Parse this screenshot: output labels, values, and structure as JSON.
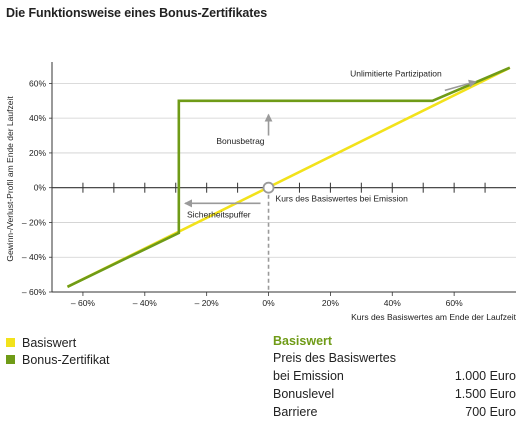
{
  "title": "Die Funktionsweise eines Bonus-Zertifikates",
  "chart_data": {
    "type": "line",
    "xlabel": "Kurs des Basiswertes am Ende der Laufzeit",
    "ylabel": "Gewinn-/Verlust-Profil am Ende der Laufzeit",
    "xlim": [
      -70,
      80
    ],
    "ylim": [
      -60,
      70
    ],
    "xticks": [
      -60,
      -40,
      -20,
      0,
      20,
      40,
      60
    ],
    "xtick_labels": [
      "– 60%",
      "– 40%",
      "– 20%",
      "0%",
      "20%",
      "40%",
      "60%"
    ],
    "yticks": [
      60,
      40,
      20,
      0,
      -20,
      -40,
      -60
    ],
    "ytick_labels": [
      "60%",
      "40%",
      "20%",
      "0%",
      "– 20%",
      "– 40%",
      "– 60%"
    ],
    "grid": "horizontal",
    "series": [
      {
        "name": "Basiswert",
        "color": "#f2e21b",
        "points": [
          [
            -65,
            -57
          ],
          [
            78,
            69
          ]
        ]
      },
      {
        "name": "Bonus-Zertifikat",
        "color": "#6f9b17",
        "points": [
          [
            -65,
            -57
          ],
          [
            -29,
            -26
          ],
          [
            -29,
            50
          ],
          [
            53,
            50
          ],
          [
            78,
            69
          ]
        ]
      }
    ],
    "annotations": {
      "unlimited": "Unlimitierte Partizipation",
      "bonus": "Bonusbetrag",
      "emission": "Kurs des Basiswertes bei Emission",
      "buffer": "Sicherheitspuffer"
    }
  },
  "legend": [
    {
      "label": "Basiswert",
      "color": "#f2e21b"
    },
    {
      "label": "Bonus-Zertifikat",
      "color": "#6f9b17"
    }
  ],
  "info": {
    "title": "Basiswert",
    "subtitle": "Preis des Basiswertes",
    "rows": [
      {
        "label": "bei Emission",
        "value": "1.000 Euro"
      },
      {
        "label": "Bonuslevel",
        "value": "1.500 Euro"
      },
      {
        "label": "Barriere",
        "value": "700 Euro"
      }
    ]
  }
}
